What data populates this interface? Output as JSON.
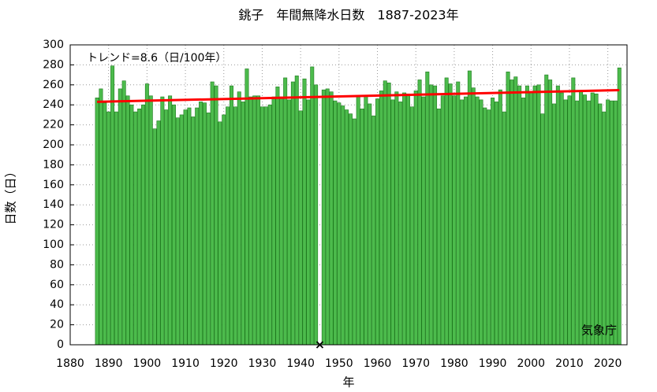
{
  "chart_data": {
    "type": "bar",
    "title": "銚子　年間無降水日数　1887-2023年",
    "xlabel": "年",
    "ylabel": "日数（日）",
    "trend_label": "トレンド=8.6（日/100年）",
    "source": "気象庁",
    "x": [
      1887,
      1888,
      1889,
      1890,
      1891,
      1892,
      1893,
      1894,
      1895,
      1896,
      1897,
      1898,
      1899,
      1900,
      1901,
      1902,
      1903,
      1904,
      1905,
      1906,
      1907,
      1908,
      1909,
      1910,
      1911,
      1912,
      1913,
      1914,
      1915,
      1916,
      1917,
      1918,
      1919,
      1920,
      1921,
      1922,
      1923,
      1924,
      1925,
      1926,
      1927,
      1928,
      1929,
      1930,
      1931,
      1932,
      1933,
      1934,
      1935,
      1936,
      1937,
      1938,
      1939,
      1940,
      1941,
      1942,
      1943,
      1944,
      1945,
      1946,
      1947,
      1948,
      1949,
      1950,
      1951,
      1952,
      1953,
      1954,
      1955,
      1956,
      1957,
      1958,
      1959,
      1960,
      1961,
      1962,
      1963,
      1964,
      1965,
      1966,
      1967,
      1968,
      1969,
      1970,
      1971,
      1972,
      1973,
      1974,
      1975,
      1976,
      1977,
      1978,
      1979,
      1980,
      1981,
      1982,
      1983,
      1984,
      1985,
      1986,
      1987,
      1988,
      1989,
      1990,
      1991,
      1992,
      1993,
      1994,
      1995,
      1996,
      1997,
      1998,
      1999,
      2000,
      2001,
      2002,
      2003,
      2004,
      2005,
      2006,
      2007,
      2008,
      2009,
      2010,
      2011,
      2012,
      2013,
      2014,
      2015,
      2016,
      2017,
      2018,
      2019,
      2020,
      2021,
      2022,
      2023
    ],
    "values": [
      247,
      256,
      242,
      233,
      279,
      233,
      256,
      264,
      249,
      240,
      233,
      236,
      240,
      261,
      249,
      216,
      224,
      248,
      235,
      249,
      240,
      227,
      230,
      235,
      237,
      228,
      237,
      243,
      242,
      232,
      263,
      259,
      223,
      230,
      238,
      259,
      238,
      253,
      243,
      276,
      248,
      249,
      249,
      238,
      238,
      240,
      248,
      258,
      248,
      267,
      245,
      263,
      269,
      234,
      266,
      245,
      278,
      260,
      null,
      255,
      256,
      253,
      244,
      242,
      239,
      235,
      231,
      226,
      248,
      236,
      249,
      241,
      229,
      246,
      254,
      264,
      262,
      245,
      253,
      243,
      252,
      251,
      238,
      254,
      265,
      248,
      273,
      260,
      259,
      236,
      249,
      267,
      261,
      249,
      263,
      245,
      248,
      274,
      257,
      248,
      245,
      237,
      235,
      247,
      243,
      255,
      233,
      273,
      265,
      268,
      259,
      247,
      259,
      253,
      259,
      260,
      231,
      270,
      265,
      241,
      259,
      252,
      245,
      249,
      267,
      244,
      254,
      250,
      244,
      252,
      251,
      241,
      233,
      245,
      244,
      244,
      277
    ],
    "color": "#4cbb4c",
    "edge_color": "#1f7a1f",
    "trend": {
      "x": [
        1887,
        2023
      ],
      "values": [
        243,
        254.7
      ],
      "color": "#ff0000"
    },
    "missing_marker": {
      "x": [
        1945
      ],
      "values": [
        0
      ]
    },
    "xlim": [
      1880,
      2025
    ],
    "ylim": [
      0,
      300
    ],
    "xticks": [
      1880,
      1890,
      1900,
      1910,
      1920,
      1930,
      1940,
      1950,
      1960,
      1970,
      1980,
      1990,
      2000,
      2010,
      2020
    ],
    "yticks": [
      0,
      20,
      40,
      60,
      80,
      100,
      120,
      140,
      160,
      180,
      200,
      220,
      240,
      260,
      280,
      300
    ],
    "grid": true
  }
}
